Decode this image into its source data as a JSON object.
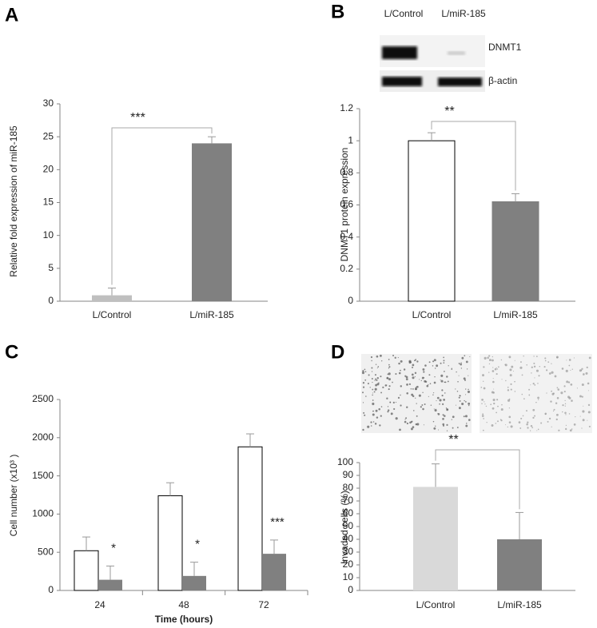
{
  "chart_data": [
    {
      "type": "bar",
      "panel_label": "A",
      "y_label": "Relative fold expression of miR-185",
      "categories": [
        "L/Control",
        "L/miR-185"
      ],
      "values": [
        0.9,
        24
      ],
      "errors": [
        1.1,
        1.0
      ],
      "colors": [
        "#bfbfbf",
        "#808080"
      ],
      "ylim": [
        0,
        30
      ],
      "yticks": [
        0,
        5,
        10,
        15,
        20,
        25,
        30
      ],
      "significance": "***"
    },
    {
      "type": "bar",
      "panel_label": "B",
      "y_label": "DNMT1 protein expression",
      "blot": {
        "lanes": [
          "L/Control",
          "L/miR-185"
        ],
        "bands": [
          "DNMT1",
          "β-actin"
        ]
      },
      "categories": [
        "L/Control",
        "L/miR-185"
      ],
      "values": [
        1.0,
        0.62
      ],
      "errors": [
        0.05,
        0.05
      ],
      "colors": [
        "#ffffff",
        "#808080"
      ],
      "edge_colors": [
        "#000000",
        "#808080"
      ],
      "ylim": [
        0,
        1.2
      ],
      "yticks": [
        0,
        0.2,
        0.4,
        0.6,
        0.8,
        1,
        1.2
      ],
      "significance": "**"
    },
    {
      "type": "grouped-bar",
      "panel_label": "C",
      "y_label": "Cell number (x10³ )",
      "x_label": "Time (hours)",
      "categories": [
        "24",
        "48",
        "72"
      ],
      "series": [
        {
          "color": "#ffffff",
          "edge_color": "#000000",
          "values": [
            520,
            1240,
            1880
          ],
          "errors": [
            180,
            170,
            170
          ]
        },
        {
          "color": "#808080",
          "values": [
            140,
            190,
            480
          ],
          "errors": [
            180,
            180,
            180
          ],
          "annotations": [
            "*",
            "*",
            "***"
          ]
        }
      ],
      "ylim": [
        0,
        2500
      ],
      "yticks": [
        0,
        500,
        1000,
        1500,
        2000,
        2500
      ]
    },
    {
      "type": "bar",
      "panel_label": "D",
      "y_label": "Invaded cells (%)",
      "categories": [
        "L/Control",
        "L/miR-185"
      ],
      "values": [
        81,
        40
      ],
      "errors": [
        18,
        21
      ],
      "colors": [
        "#d9d9d9",
        "#808080"
      ],
      "ylim": [
        0,
        100
      ],
      "yticks": [
        0,
        10,
        20,
        30,
        40,
        50,
        60,
        70,
        80,
        90,
        100
      ],
      "significance": "**"
    }
  ]
}
